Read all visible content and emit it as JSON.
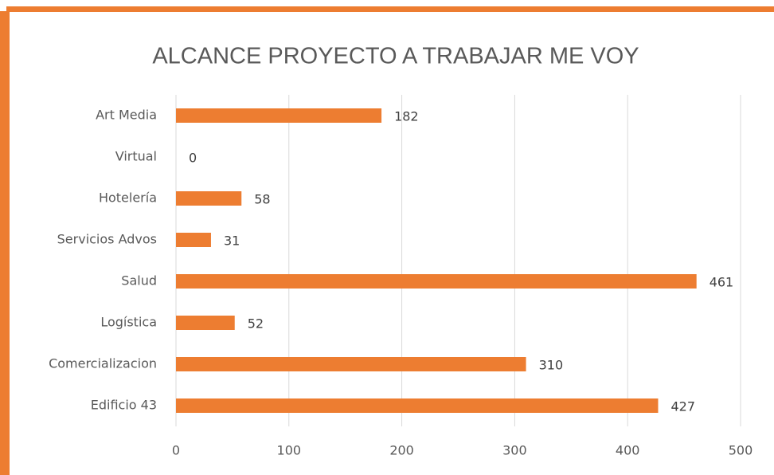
{
  "chart_data": {
    "type": "bar",
    "orientation": "horizontal",
    "title": "ALCANCE PROYECTO A TRABAJAR ME VOY",
    "categories": [
      "Art Media",
      "Virtual",
      "Hotelería",
      "Servicios Advos",
      "Salud",
      "Logística",
      "Comercializacion",
      "Edificio 43"
    ],
    "values": [
      182,
      0,
      58,
      31,
      461,
      52,
      310,
      427
    ],
    "color": "#ed7d31",
    "xlim": [
      0,
      500
    ],
    "xticks": [
      0,
      100,
      200,
      300,
      400,
      500
    ],
    "grid": true
  }
}
